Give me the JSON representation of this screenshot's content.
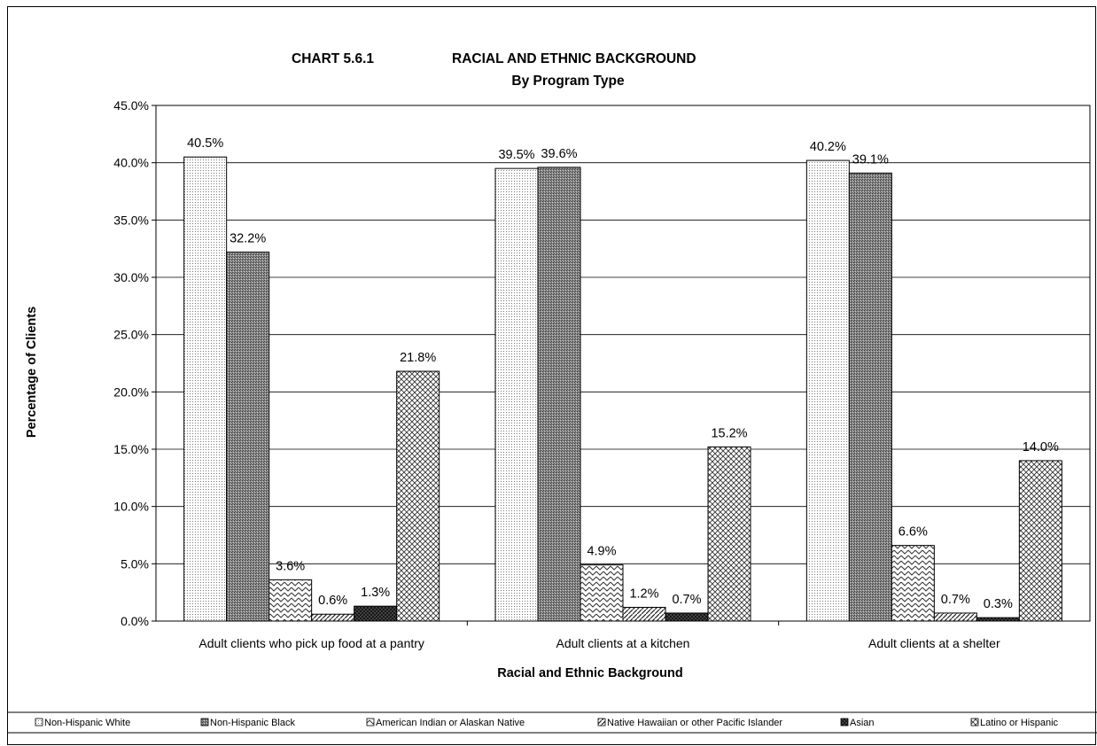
{
  "chart_data": {
    "type": "bar",
    "title_prefix": "CHART 5.6.1",
    "title": "RACIAL AND ETHNIC BACKGROUND",
    "subtitle": "By Program Type",
    "xlabel": "Racial and Ethnic Background",
    "ylabel": "Percentage of Clients",
    "ylim": [
      0,
      45
    ],
    "yticks": [
      "0.0%",
      "5.0%",
      "10.0%",
      "15.0%",
      "20.0%",
      "25.0%",
      "30.0%",
      "35.0%",
      "40.0%",
      "45.0%"
    ],
    "grid": true,
    "legend_position": "bottom",
    "categories": [
      "Adult clients who pick up food at a pantry",
      "Adult clients at a kitchen",
      "Adult clients at a shelter"
    ],
    "series": [
      {
        "name": "Non-Hispanic White",
        "values": [
          40.5,
          39.5,
          40.2
        ],
        "labels": [
          "40.5%",
          "39.5%",
          "40.2%"
        ],
        "pattern": "dots"
      },
      {
        "name": "Non-Hispanic Black",
        "values": [
          32.2,
          39.6,
          39.1
        ],
        "labels": [
          "32.2%",
          "39.6%",
          "39.1%"
        ],
        "pattern": "dense"
      },
      {
        "name": "American Indian or Alaskan Native",
        "values": [
          3.6,
          4.9,
          6.6
        ],
        "labels": [
          "3.6%",
          "4.9%",
          "6.6%"
        ],
        "pattern": "zigzag"
      },
      {
        "name": "Native Hawaiian or other Pacific Islander",
        "values": [
          0.6,
          1.2,
          0.7
        ],
        "labels": [
          "0.6%",
          "1.2%",
          "0.7%"
        ],
        "pattern": "diag"
      },
      {
        "name": "Asian",
        "values": [
          1.3,
          0.7,
          0.3
        ],
        "labels": [
          "1.3%",
          "0.7%",
          "0.3%"
        ],
        "pattern": "darkcross"
      },
      {
        "name": "Latino or Hispanic",
        "values": [
          21.8,
          15.2,
          14.0
        ],
        "labels": [
          "21.8%",
          "15.2%",
          "14.0%"
        ],
        "pattern": "crosshatch"
      }
    ]
  }
}
